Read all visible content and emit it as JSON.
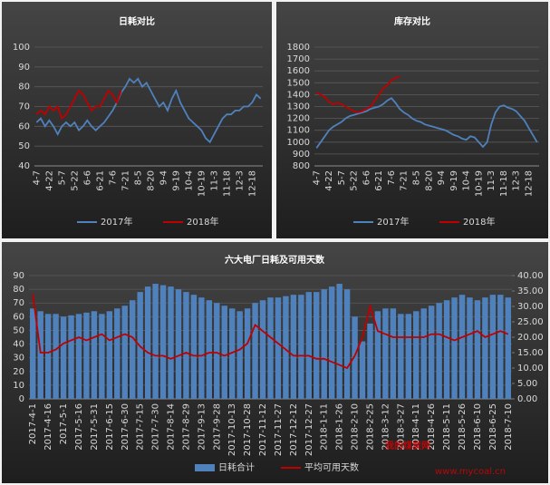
{
  "chart_data": [
    {
      "type": "line",
      "title": "日耗对比",
      "categories": [
        "4-7",
        null,
        null,
        "4-22",
        null,
        null,
        "5-7",
        null,
        null,
        "5-22",
        null,
        null,
        "6-6",
        null,
        null,
        "6-21",
        null,
        null,
        "7-6",
        null,
        null,
        "7-21",
        null,
        null,
        "8-5",
        null,
        null,
        "8-20",
        null,
        null,
        "9-4",
        null,
        null,
        "9-19",
        null,
        null,
        "10-4",
        null,
        null,
        "10-19",
        null,
        null,
        "11-3",
        null,
        null,
        "11-18",
        null,
        null,
        "12-3",
        null,
        null,
        "12-18",
        null,
        null
      ],
      "series": [
        {
          "name": "2017年",
          "color": "#4f81bd",
          "values": [
            62,
            64,
            60,
            63,
            60,
            56,
            60,
            62,
            60,
            62,
            58,
            60,
            63,
            60,
            58,
            60,
            62,
            65,
            68,
            72,
            77,
            80,
            84,
            82,
            84,
            80,
            82,
            78,
            74,
            70,
            72,
            68,
            74,
            78,
            72,
            68,
            64,
            62,
            60,
            58,
            54,
            52,
            56,
            60,
            64,
            66,
            66,
            68,
            68,
            70,
            70,
            72,
            76,
            74
          ]
        },
        {
          "name": "2018年",
          "color": "#c00000",
          "values": [
            66,
            68,
            66,
            70,
            68,
            70,
            64,
            66,
            70,
            74,
            78,
            76,
            72,
            68,
            70,
            70,
            74,
            78,
            76,
            72,
            78,
            null,
            null,
            null,
            null,
            null,
            null,
            null,
            null,
            null,
            null,
            null,
            null,
            null,
            null,
            null,
            null,
            null,
            null,
            null,
            null,
            null,
            null,
            null,
            null,
            null,
            null,
            null,
            null,
            null,
            null,
            null,
            null,
            null
          ]
        }
      ],
      "ylim": [
        40,
        100
      ],
      "yticks": [
        40,
        50,
        60,
        70,
        80,
        90,
        100
      ],
      "grid": true
    },
    {
      "type": "line",
      "title": "库存对比",
      "categories": [
        "4-7",
        null,
        null,
        "4-22",
        null,
        null,
        "5-7",
        null,
        null,
        "5-22",
        null,
        null,
        "6-6",
        null,
        null,
        "6-21",
        null,
        null,
        "7-6",
        null,
        null,
        "7-21",
        null,
        null,
        "8-5",
        null,
        null,
        "8-20",
        null,
        null,
        "9-4",
        null,
        null,
        "9-19",
        null,
        null,
        "10-4",
        null,
        null,
        "10-19",
        null,
        null,
        "11-3",
        null,
        null,
        "11-18",
        null,
        null,
        "12-3",
        null,
        null,
        "12-18",
        null,
        null
      ],
      "series": [
        {
          "name": "2017年",
          "color": "#4f81bd",
          "values": [
            950,
            1000,
            1050,
            1100,
            1130,
            1150,
            1170,
            1200,
            1220,
            1230,
            1240,
            1250,
            1260,
            1280,
            1290,
            1300,
            1320,
            1350,
            1370,
            1330,
            1280,
            1250,
            1230,
            1200,
            1180,
            1170,
            1150,
            1140,
            1130,
            1120,
            1110,
            1100,
            1080,
            1060,
            1050,
            1030,
            1020,
            1050,
            1040,
            1000,
            960,
            1000,
            1150,
            1250,
            1300,
            1310,
            1290,
            1280,
            1260,
            1220,
            1180,
            1120,
            1060,
            1000
          ]
        },
        {
          "name": "2018年",
          "color": "#c00000",
          "values": [
            1420,
            1400,
            1380,
            1340,
            1320,
            1330,
            1320,
            1300,
            1280,
            1260,
            1250,
            1260,
            1280,
            1300,
            1350,
            1400,
            1450,
            1480,
            1520,
            1540,
            1550,
            null,
            null,
            null,
            null,
            null,
            null,
            null,
            null,
            null,
            null,
            null,
            null,
            null,
            null,
            null,
            null,
            null,
            null,
            null,
            null,
            null,
            null,
            null,
            null,
            null,
            null,
            null,
            null,
            null,
            null,
            null,
            null,
            null
          ]
        }
      ],
      "ylim": [
        800,
        1800
      ],
      "yticks": [
        800,
        900,
        1000,
        1100,
        1200,
        1300,
        1400,
        1500,
        1600,
        1700,
        1800
      ],
      "grid": true
    },
    {
      "type": "combo",
      "title": "六大电厂日耗及可用天数",
      "categories": [
        "2017-4-1",
        null,
        "2017-4-16",
        null,
        "2017-5-1",
        null,
        "2017-5-16",
        null,
        "2017-5-31",
        null,
        "2017-6-15",
        null,
        "2017-6-30",
        null,
        "2017-7-15",
        null,
        "2017-7-30",
        null,
        "2017-8-14",
        null,
        "2017-8-29",
        null,
        "2017-9-13",
        null,
        "2017-9-28",
        null,
        "2017-10-13",
        null,
        "2017-10-28",
        null,
        "2017-11-12",
        null,
        "2017-11-27",
        null,
        "2017-12-12",
        null,
        "2017-12-27",
        null,
        "2018-1-11",
        null,
        "2018-1-26",
        null,
        "2018-2-10",
        null,
        "2018-2-25",
        null,
        "2018-3-12",
        null,
        "2018-3-27",
        null,
        "2018-4-11",
        null,
        "2018-4-26",
        null,
        "2018-5-11",
        null,
        "2018-5-26",
        null,
        "2018-6-10",
        null,
        "2018-6-25",
        null,
        "2018-7-10"
      ],
      "series": [
        {
          "name": "日耗合计",
          "type": "bar",
          "color": "#4f81bd",
          "values": [
            66,
            64,
            62,
            62,
            60,
            61,
            62,
            63,
            64,
            62,
            64,
            66,
            68,
            72,
            78,
            82,
            84,
            83,
            82,
            80,
            78,
            76,
            74,
            72,
            70,
            68,
            66,
            64,
            66,
            70,
            72,
            74,
            74,
            75,
            76,
            76,
            78,
            78,
            80,
            82,
            84,
            80,
            60,
            42,
            55,
            64,
            66,
            66,
            62,
            62,
            64,
            66,
            68,
            70,
            72,
            74,
            76,
            74,
            72,
            74,
            76,
            76,
            74
          ]
        },
        {
          "name": "平均可用天数",
          "type": "line",
          "axis": "y2",
          "color": "#c00000",
          "values": [
            34,
            15,
            15,
            16,
            18,
            19,
            20,
            19,
            20,
            21,
            19,
            20,
            21,
            20,
            17,
            15,
            14,
            14,
            13,
            14,
            15,
            14,
            14,
            15,
            15,
            14,
            15,
            16,
            18,
            24,
            22,
            20,
            18,
            16,
            14,
            14,
            14,
            13,
            13,
            12,
            11,
            10,
            14,
            20,
            30,
            22,
            21,
            20,
            20,
            20,
            20,
            20,
            21,
            21,
            20,
            19,
            20,
            21,
            22,
            20,
            21,
            22,
            21
          ]
        }
      ],
      "ylim": [
        0,
        90
      ],
      "yticks": [
        0,
        10,
        20,
        30,
        40,
        50,
        60,
        70,
        80,
        90
      ],
      "y2lim": [
        0,
        40
      ],
      "y2ticks": [
        {
          "value": 0,
          "label": "0.00"
        },
        {
          "value": 5,
          "label": "5.00"
        },
        {
          "value": 10,
          "label": "10.00"
        },
        {
          "value": 15,
          "label": "15.00"
        },
        {
          "value": 20,
          "label": "20.00"
        },
        {
          "value": 25,
          "label": "25.00"
        },
        {
          "value": 30,
          "label": "30.00"
        },
        {
          "value": 35,
          "label": "35.00"
        },
        {
          "value": 40,
          "label": "40.00"
        }
      ],
      "grid": true
    }
  ],
  "watermark": {
    "name": "我的煤炭网",
    "url": "www.mycoal.cn"
  }
}
